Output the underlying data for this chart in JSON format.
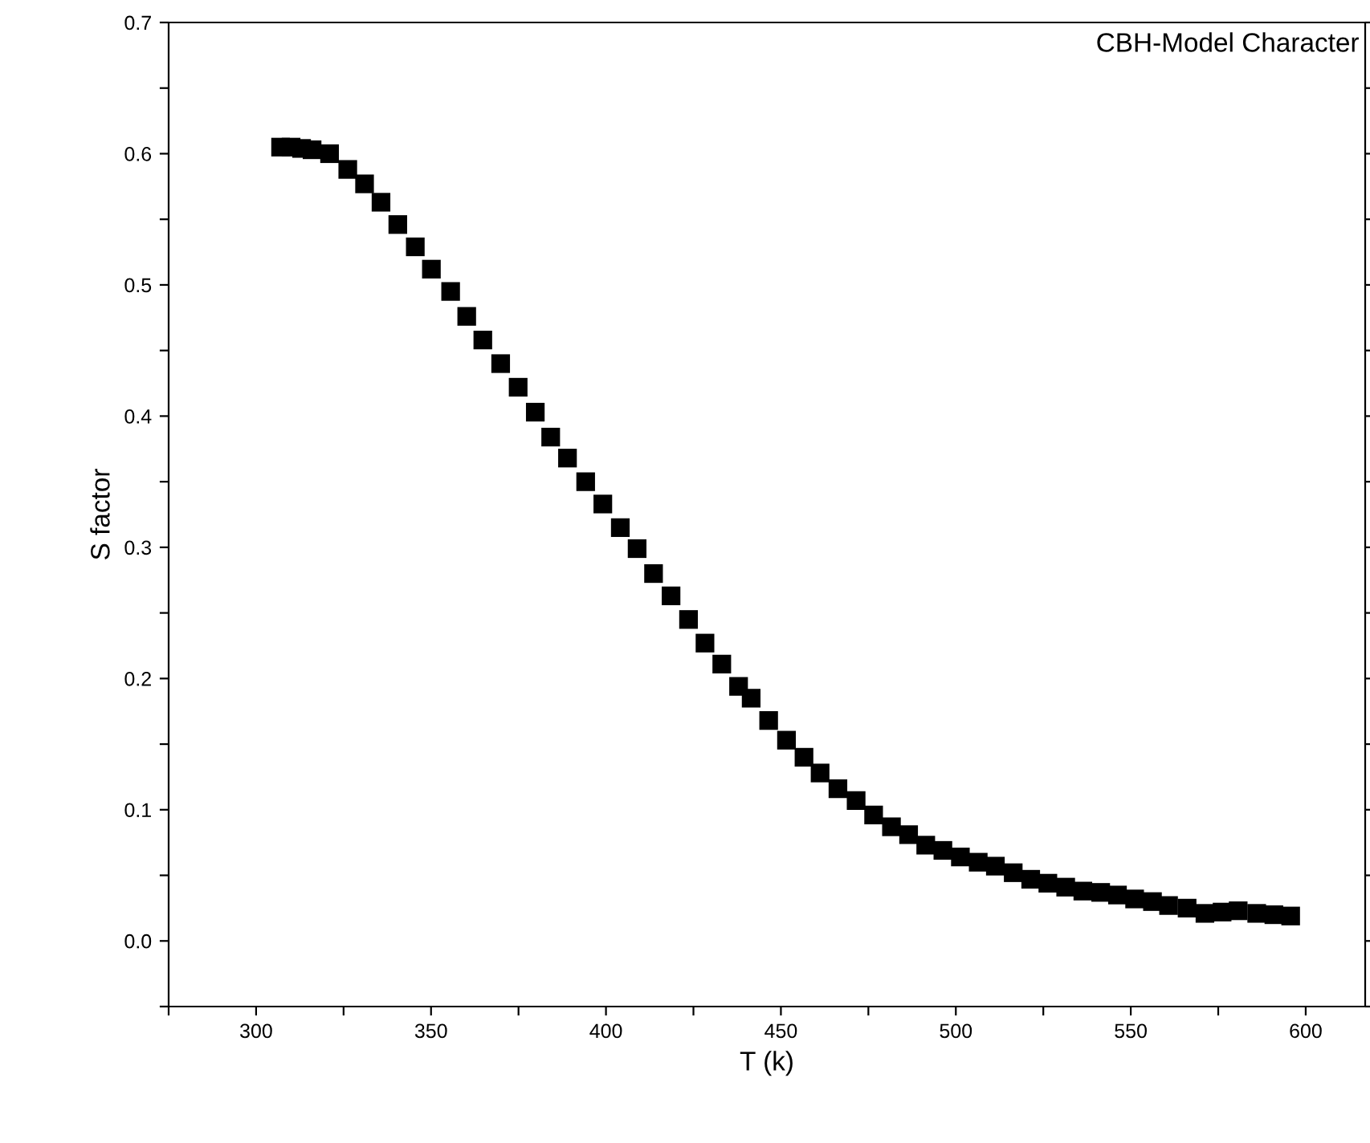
{
  "chart_data": {
    "type": "scatter",
    "xlabel": "T (k)",
    "ylabel": "S factor",
    "annotations": [
      "CBH-Model Character"
    ],
    "marker": "square",
    "grid": false,
    "legend": false,
    "xlim": [
      275,
      617
    ],
    "ylim": [
      -0.05,
      0.7
    ],
    "xticks": [
      {
        "value": 275,
        "label": null
      },
      300,
      {
        "value": 325,
        "label": null
      },
      350,
      {
        "value": 375,
        "label": null
      },
      400,
      {
        "value": 425,
        "label": null
      },
      450,
      {
        "value": 475,
        "label": null
      },
      500,
      {
        "value": 525,
        "label": null
      },
      550,
      {
        "value": 575,
        "label": null
      },
      600
    ],
    "yticks": [
      {
        "value": -0.05,
        "label": null
      },
      {
        "value": 0,
        "label": "0.0"
      },
      {
        "value": 0.05,
        "label": null
      },
      0.1,
      {
        "value": 0.15,
        "label": null
      },
      0.2,
      {
        "value": 0.25,
        "label": null
      },
      0.3,
      {
        "value": 0.35,
        "label": null
      },
      0.4,
      {
        "value": 0.45,
        "label": null
      },
      0.5,
      {
        "value": 0.55,
        "label": null
      },
      0.6,
      {
        "value": 0.65,
        "label": null
      },
      0.7
    ],
    "series": [
      {
        "color": "#000000",
        "x": [
          307,
          310,
          313,
          316,
          321,
          326.2,
          331,
          335.7,
          340.5,
          345.5,
          350.1,
          355.6,
          360.2,
          364.8,
          369.9,
          374.9,
          379.8,
          384.2,
          389,
          394.2,
          399.1,
          404.1,
          408.9,
          413.6,
          418.6,
          423.6,
          428.3,
          433.1,
          437.9,
          441.5,
          446.5,
          451.6,
          456.6,
          461.2,
          466.3,
          471.5,
          476.5,
          481.6,
          486.5,
          491.4,
          496.3,
          501.3,
          506.4,
          511.3,
          516.4,
          521.4,
          526.3,
          531.4,
          536.3,
          541.4,
          546.2,
          551.1,
          556.2,
          560.8,
          566.1,
          571.2,
          576.1,
          580.7,
          586,
          590.9,
          595.7
        ],
        "values": [
          0.605,
          0.605,
          0.604,
          0.603,
          0.6,
          0.588,
          0.577,
          0.563,
          0.546,
          0.529,
          0.512,
          0.495,
          0.476,
          0.458,
          0.44,
          0.422,
          0.403,
          0.384,
          0.368,
          0.35,
          0.333,
          0.315,
          0.299,
          0.28,
          0.263,
          0.245,
          0.227,
          0.211,
          0.194,
          0.185,
          0.168,
          0.153,
          0.14,
          0.128,
          0.116,
          0.107,
          0.096,
          0.087,
          0.081,
          0.073,
          0.069,
          0.064,
          0.06,
          0.057,
          0.052,
          0.047,
          0.044,
          0.041,
          0.038,
          0.037,
          0.035,
          0.032,
          0.03,
          0.027,
          0.025,
          0.021,
          0.022,
          0.023,
          0.021,
          0.02,
          0.019
        ]
      }
    ]
  }
}
